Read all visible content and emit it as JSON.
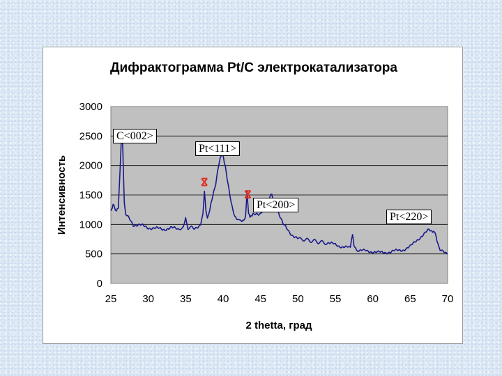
{
  "chart_data": {
    "type": "line",
    "title": "Дифрактограмма Pt/C электрокатализатора",
    "xlabel": "2 thetta, град",
    "ylabel": "Интенсивность",
    "xlim": [
      25,
      70
    ],
    "ylim": [
      0,
      3000
    ],
    "xticks": [
      "25",
      "30",
      "35",
      "40",
      "45",
      "50",
      "55",
      "60",
      "65",
      "70"
    ],
    "yticks": [
      "0",
      "500",
      "1000",
      "1500",
      "2000",
      "2500",
      "3000"
    ],
    "grid": true,
    "plot_background": "#c0c0c0",
    "line_color": "#1a1a8c",
    "marker_color": "#e03020",
    "series": [
      {
        "x": [
          25,
          25.3,
          25.6,
          26.0,
          26.2,
          26.4,
          26.5,
          26.6,
          26.8,
          27.0,
          27.5,
          28.0,
          29.0,
          30.0,
          31.0,
          32.0,
          33.0,
          34.0,
          34.7,
          35.0,
          35.3,
          36.0,
          37.0,
          37.3,
          37.5,
          37.7,
          37.9,
          38.1,
          38.5,
          39.0,
          39.5,
          39.9,
          40.3,
          40.8,
          41.3,
          41.8,
          42.5,
          43.0,
          43.2,
          43.4,
          43.6,
          44.0,
          45.0,
          46.0,
          46.5,
          47.0,
          48.0,
          49.0,
          50.0,
          52.0,
          54.0,
          55.0,
          56.0,
          57.0,
          57.3,
          57.5,
          57.7,
          58.0,
          59.0,
          60.0,
          61.0,
          62.0,
          63.0,
          64.0,
          65.0,
          66.0,
          67.0,
          67.5,
          68.0,
          68.3,
          68.7,
          69.0,
          69.5,
          70.0
        ],
        "y": [
          1200,
          1350,
          1250,
          1300,
          1800,
          2500,
          2600,
          2200,
          1400,
          1150,
          1100,
          1000,
          980,
          950,
          930,
          920,
          940,
          920,
          950,
          1100,
          950,
          930,
          1000,
          1200,
          1550,
          1250,
          1100,
          1200,
          1450,
          1700,
          2050,
          2200,
          1950,
          1550,
          1250,
          1100,
          1050,
          1150,
          1550,
          1200,
          1100,
          1150,
          1200,
          1400,
          1500,
          1350,
          1000,
          850,
          760,
          720,
          680,
          660,
          620,
          600,
          820,
          650,
          580,
          560,
          550,
          540,
          520,
          530,
          550,
          570,
          620,
          750,
          850,
          900,
          880,
          850,
          650,
          560,
          520,
          500
        ]
      }
    ],
    "annotations": [
      {
        "text": "C<002>",
        "x": 26.5
      },
      {
        "text": "Pt<111>",
        "x": 39.9
      },
      {
        "text": "Pt<200>",
        "x": 46.5
      },
      {
        "text": "Pt<220>",
        "x": 67.8
      }
    ],
    "markers": [
      {
        "x": 37.5,
        "y": 1720
      },
      {
        "x": 43.3,
        "y": 1510
      }
    ]
  }
}
